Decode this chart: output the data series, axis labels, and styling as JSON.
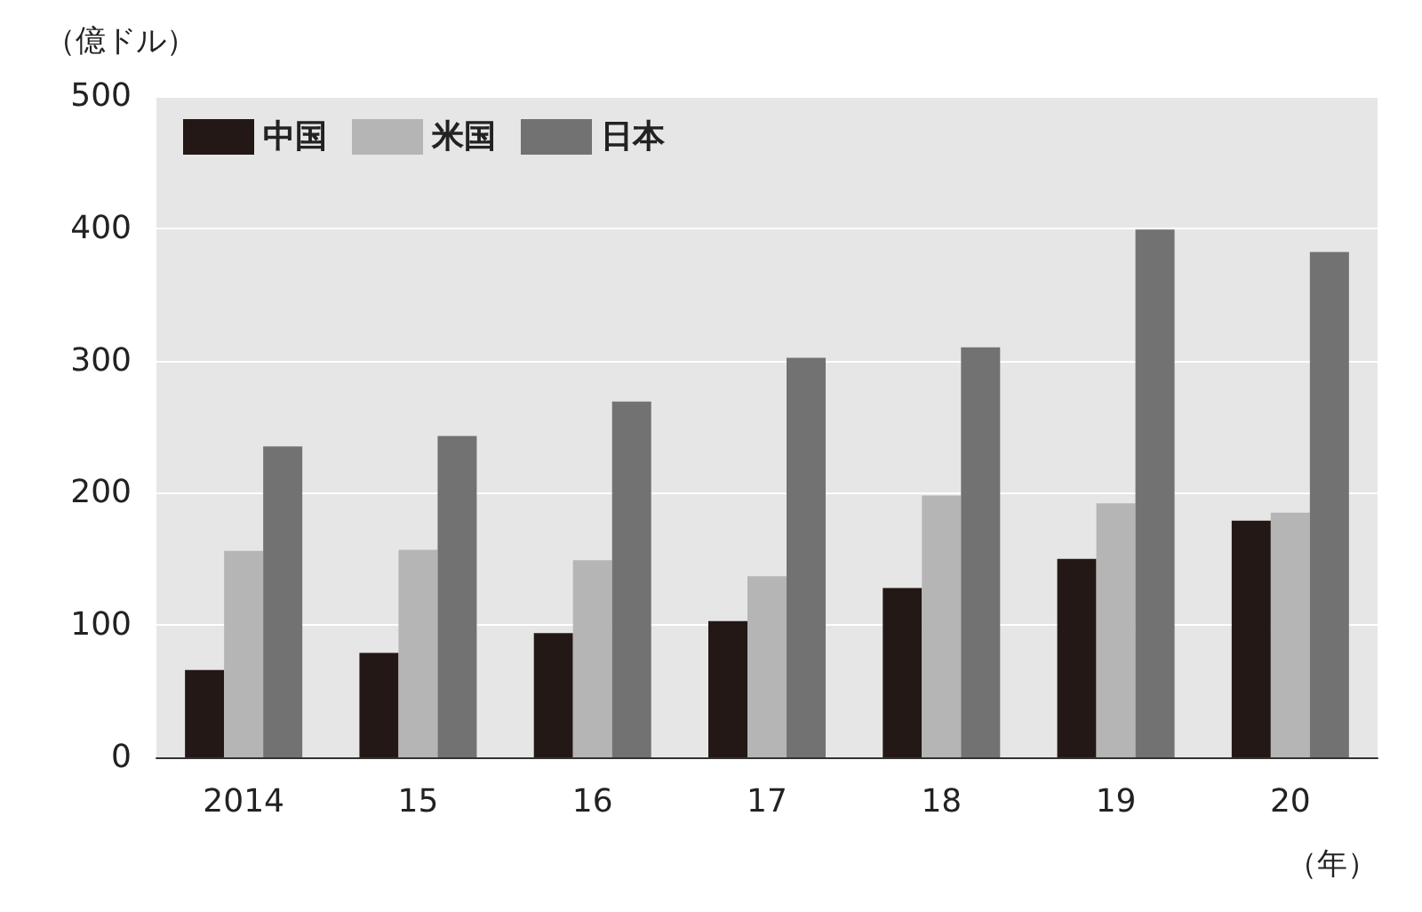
{
  "chart_data": {
    "type": "bar",
    "ylabel": "（億ドル）",
    "xlabel": "（年）",
    "categories": [
      "2014",
      "15",
      "16",
      "17",
      "18",
      "19",
      "20"
    ],
    "series": [
      {
        "name": "中国",
        "color": "#231815",
        "values": [
          66,
          79,
          94,
          103,
          128,
          150,
          179
        ]
      },
      {
        "name": "米国",
        "color": "#b5b5b5",
        "values": [
          156,
          157,
          149,
          137,
          198,
          192,
          185
        ]
      },
      {
        "name": "日本",
        "color": "#727272",
        "values": [
          235,
          243,
          269,
          302,
          310,
          399,
          382
        ]
      }
    ],
    "ylim": [
      0,
      500
    ],
    "yticks": [
      0,
      100,
      200,
      300,
      400,
      500
    ],
    "grid": "y",
    "legend": "top left"
  }
}
